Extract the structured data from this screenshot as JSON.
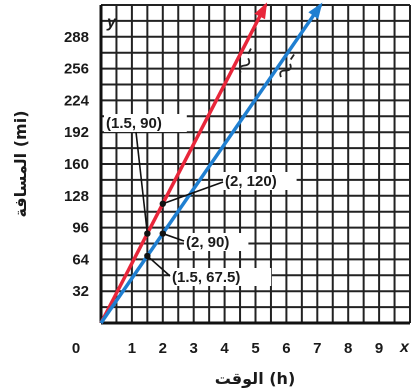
{
  "chart_data": {
    "type": "line",
    "x_axis_letter": "x",
    "y_axis_letter": "y",
    "xlabel": "الوقت (h)",
    "ylabel": "المسافة (mi)",
    "x_ticks": [
      "0",
      "1",
      "2",
      "3",
      "4",
      "5",
      "6",
      "7",
      "8",
      "9"
    ],
    "y_ticks": [
      "32",
      "64",
      "96",
      "128",
      "160",
      "192",
      "224",
      "256",
      "288"
    ],
    "xlim": [
      0,
      10
    ],
    "ylim": [
      0,
      320
    ],
    "grid": true,
    "series": [
      {
        "name": "A",
        "color": "#e8263a",
        "slope": 60,
        "x": [
          0,
          5.33
        ],
        "y": [
          0,
          320
        ]
      },
      {
        "name": "B",
        "color": "#1f7fd1",
        "slope": 45,
        "x": [
          0,
          7.11
        ],
        "y": [
          0,
          320
        ]
      }
    ],
    "annotations": [
      {
        "text": "(1.5, 90)",
        "x": 1.5,
        "y": 90
      },
      {
        "text": "(2, 120)",
        "x": 2,
        "y": 120
      },
      {
        "text": "(2, 90)",
        "x": 2,
        "y": 90
      },
      {
        "text": "(1.5, 67.5)",
        "x": 1.5,
        "y": 67.5
      }
    ]
  }
}
